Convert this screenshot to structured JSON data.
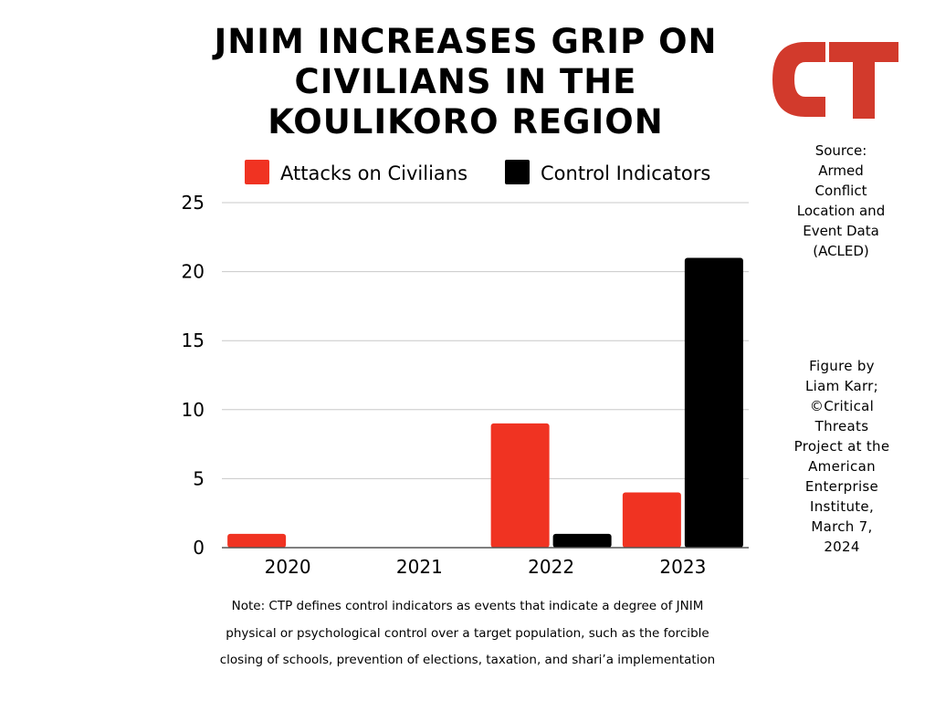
{
  "title_lines": [
    "JNIM INCREASES GRIP ON",
    "CIVILIANS IN THE",
    "KOULIKORO REGION"
  ],
  "logo": {
    "text": "CT",
    "color": "#d23a2c"
  },
  "source_lines": [
    "Source:",
    "Armed",
    "Conflict",
    "Location and",
    "Event Data",
    "(ACLED)"
  ],
  "credit_lines": [
    "Figure by",
    "Liam Karr;",
    "©Critical",
    "Threats",
    "Project at the",
    "American",
    "Enterprise",
    "Institute,",
    "March 7,",
    "2024"
  ],
  "note_lines": [
    "Note: CTP defines control indicators as events that indicate a degree of JNIM",
    "physical or psychological control over a target population, such as the forcible",
    "closing of schools, prevention of elections, taxation, and shari’a implementation"
  ],
  "chart_data": {
    "type": "bar",
    "categories": [
      "2020",
      "2021",
      "2022",
      "2023"
    ],
    "series": [
      {
        "name": "Attacks on Civilians",
        "color": "#f03322",
        "values": [
          1,
          0,
          9,
          4
        ]
      },
      {
        "name": "Control Indicators",
        "color": "#000000",
        "values": [
          0,
          0,
          1,
          21
        ]
      }
    ],
    "ylim": [
      0,
      25
    ],
    "yticks": [
      0,
      5,
      10,
      15,
      20,
      25
    ],
    "grid": true,
    "legend": "top"
  }
}
